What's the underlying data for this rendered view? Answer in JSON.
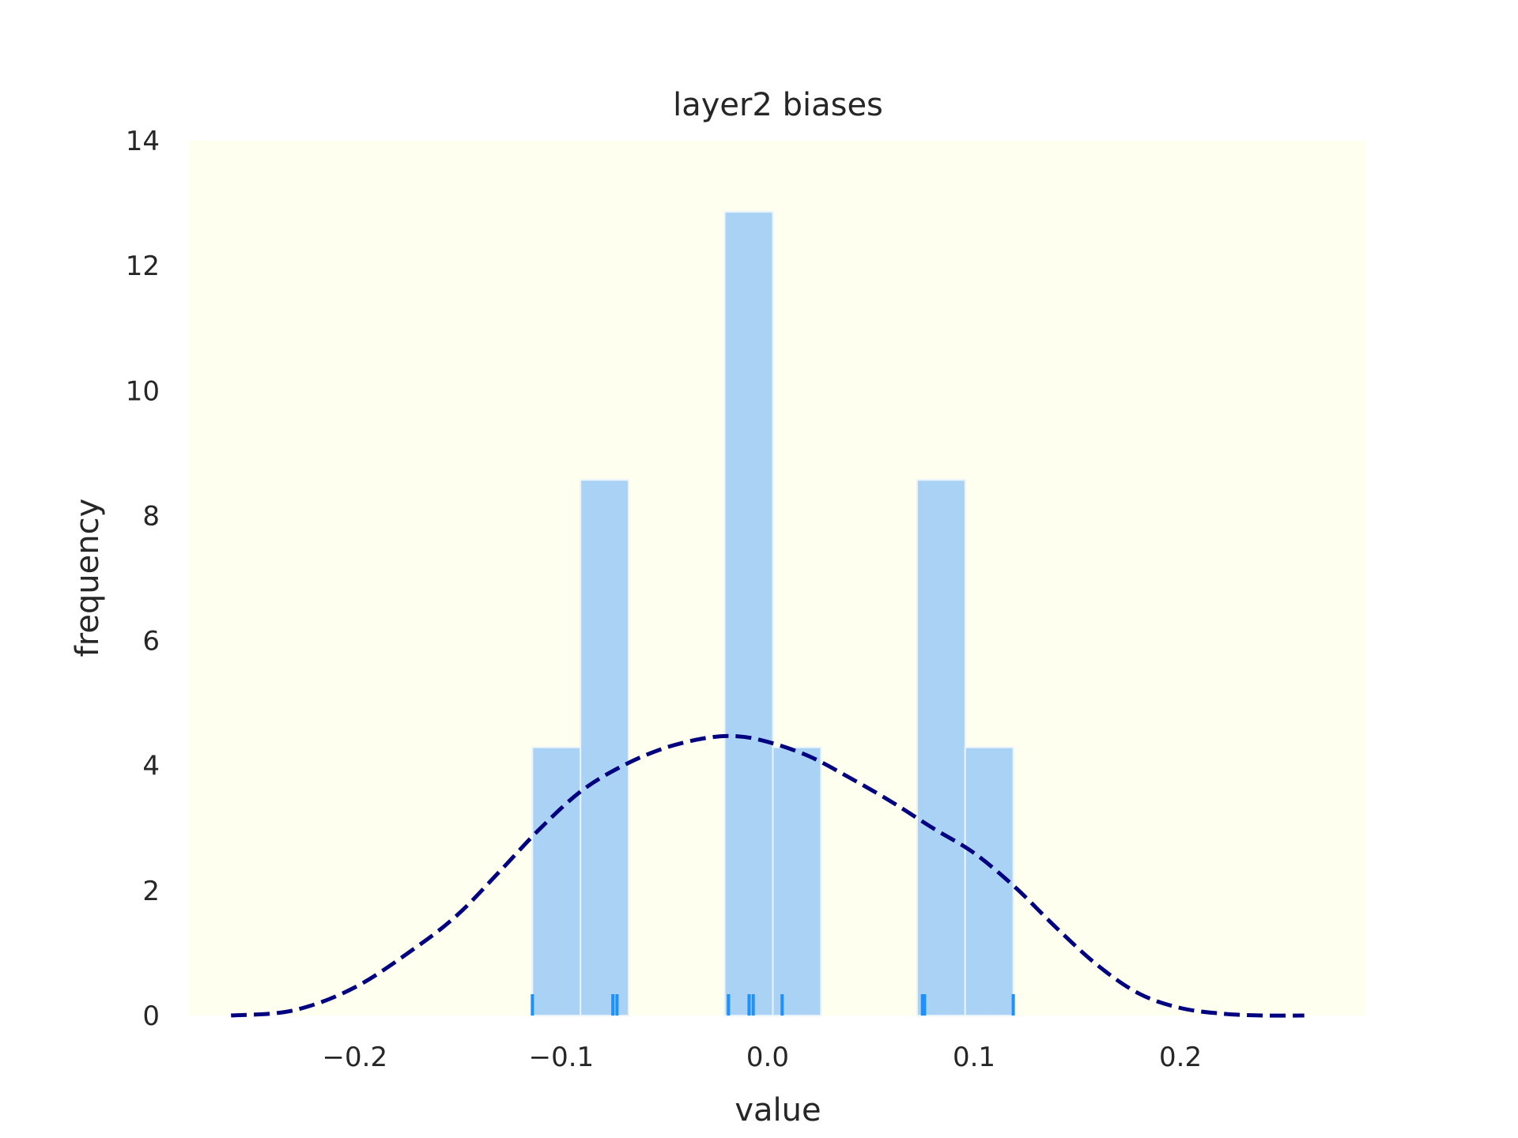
{
  "chart_data": {
    "type": "histogram",
    "title": "layer2 biases",
    "xlabel": "value",
    "ylabel": "frequency",
    "xlim": [
      -0.28,
      0.29
    ],
    "ylim": [
      0,
      14
    ],
    "x_ticks": [
      -0.2,
      -0.1,
      0.0,
      0.1,
      0.2
    ],
    "x_tick_labels": [
      "−0.2",
      "−0.1",
      "0.0",
      "0.1",
      "0.2"
    ],
    "y_ticks": [
      0,
      2,
      4,
      6,
      8,
      10,
      12,
      14
    ],
    "y_tick_labels": [
      "0",
      "2",
      "4",
      "6",
      "8",
      "10",
      "12",
      "14"
    ],
    "grid": false,
    "colors": {
      "plot_background": "#fffff0",
      "bar_fill": "#a9d2f5",
      "bar_edge": "#e8f3fc",
      "kde_line": "#000080",
      "rug": "#1e90ff"
    },
    "bins": [
      {
        "x0": -0.114,
        "x1": -0.0907,
        "value": 4.29
      },
      {
        "x0": -0.0907,
        "x1": -0.0674,
        "value": 8.57
      },
      {
        "x0": -0.0674,
        "x1": -0.0441,
        "value": 0
      },
      {
        "x0": -0.0441,
        "x1": -0.0208,
        "value": 0
      },
      {
        "x0": -0.0208,
        "x1": 0.0025,
        "value": 12.86
      },
      {
        "x0": 0.0025,
        "x1": 0.0258,
        "value": 4.29
      },
      {
        "x0": 0.0258,
        "x1": 0.0491,
        "value": 0
      },
      {
        "x0": 0.0491,
        "x1": 0.0724,
        "value": 0
      },
      {
        "x0": 0.0724,
        "x1": 0.0957,
        "value": 8.57
      },
      {
        "x0": 0.0957,
        "x1": 0.119,
        "value": 4.29
      }
    ],
    "kde": {
      "style": "dashed",
      "x": [
        -0.26,
        -0.23,
        -0.2,
        -0.17,
        -0.15,
        -0.13,
        -0.11,
        -0.09,
        -0.07,
        -0.05,
        -0.03,
        -0.015,
        0.0,
        0.02,
        0.04,
        0.06,
        0.08,
        0.1,
        0.12,
        0.14,
        0.16,
        0.18,
        0.2,
        0.22,
        0.24,
        0.26
      ],
      "y": [
        0.0,
        0.08,
        0.45,
        1.1,
        1.62,
        2.3,
        3.0,
        3.6,
        4.0,
        4.28,
        4.44,
        4.47,
        4.38,
        4.15,
        3.8,
        3.42,
        3.0,
        2.6,
        2.05,
        1.4,
        0.8,
        0.35,
        0.12,
        0.03,
        0.0,
        0.0
      ]
    },
    "rug": [
      -0.114,
      -0.075,
      -0.073,
      -0.019,
      -0.009,
      -0.007,
      0.007,
      0.075,
      0.076,
      0.119
    ]
  }
}
